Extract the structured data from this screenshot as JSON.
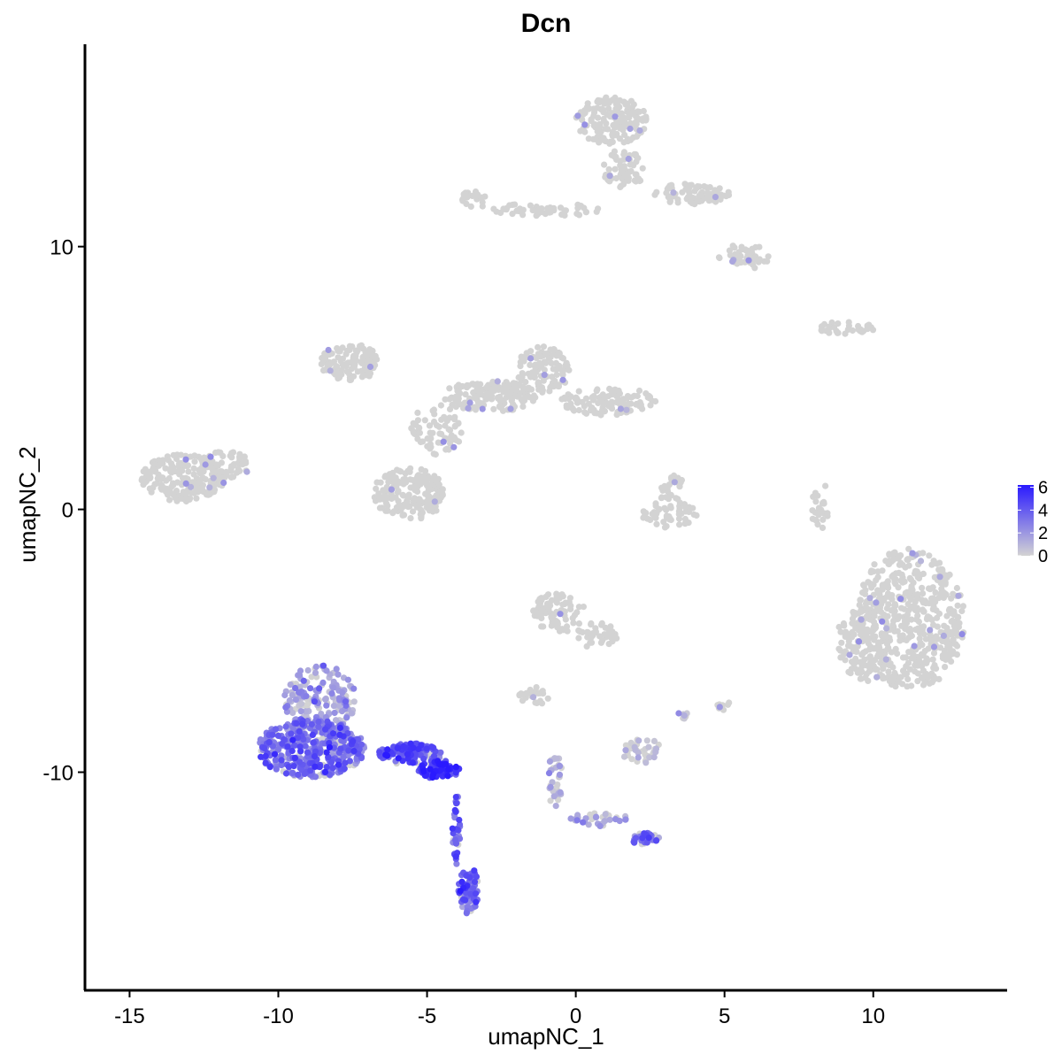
{
  "chart_data": {
    "type": "scatter",
    "title": "Dcn",
    "xlabel": "umapNC_1",
    "ylabel": "umapNC_2",
    "xlim": [
      -16.5,
      14.5
    ],
    "ylim": [
      -18.3,
      17.7
    ],
    "x_ticks": [
      -15,
      -10,
      -5,
      0,
      5,
      10
    ],
    "x_tick_labels": [
      "-15",
      "-10",
      "-5",
      "0",
      "5",
      "10"
    ],
    "y_ticks": [
      -10,
      0,
      10
    ],
    "y_tick_labels": [
      "-10",
      "0",
      "10"
    ],
    "grid": false,
    "point_color_low": "#d3d3d3",
    "point_color_high": "#2a1aff",
    "legend": {
      "position": "right",
      "title": "",
      "min": 0,
      "max": 6.2,
      "ticks": [
        0,
        2,
        4,
        6
      ],
      "tick_labels": [
        "0",
        "2",
        "4",
        "6"
      ]
    },
    "clusters": [
      {
        "cx": 11.2,
        "cy": -4.2,
        "rx": 1.9,
        "ry": 2.7,
        "n": 520,
        "expr": 0
      },
      {
        "cx": 9.7,
        "cy": -5.0,
        "rx": 0.9,
        "ry": 1.6,
        "n": 130,
        "expr": 0
      },
      {
        "cx": -13.2,
        "cy": 1.2,
        "rx": 1.4,
        "ry": 0.9,
        "n": 200,
        "expr": 0
      },
      {
        "cx": -11.8,
        "cy": 1.7,
        "rx": 0.9,
        "ry": 0.5,
        "n": 60,
        "expr": 0
      },
      {
        "cx": -7.6,
        "cy": 5.6,
        "rx": 1.0,
        "ry": 0.7,
        "n": 110,
        "expr": 0
      },
      {
        "cx": -5.6,
        "cy": 0.6,
        "rx": 1.2,
        "ry": 1.0,
        "n": 180,
        "expr": 0
      },
      {
        "cx": -2.9,
        "cy": 4.3,
        "rx": 1.6,
        "ry": 0.6,
        "n": 170,
        "expr": 0
      },
      {
        "cx": -1.1,
        "cy": 5.3,
        "rx": 0.9,
        "ry": 0.9,
        "n": 110,
        "expr": 0
      },
      {
        "cx": 1.1,
        "cy": 4.1,
        "rx": 1.6,
        "ry": 0.55,
        "n": 120,
        "expr": 0
      },
      {
        "cx": -4.7,
        "cy": 3.0,
        "rx": 0.9,
        "ry": 1.0,
        "n": 70,
        "expr": 0
      },
      {
        "cx": 1.2,
        "cy": 14.8,
        "rx": 1.2,
        "ry": 0.9,
        "n": 160,
        "expr": 0
      },
      {
        "cx": 1.6,
        "cy": 12.9,
        "rx": 0.7,
        "ry": 0.8,
        "n": 60,
        "expr": 0
      },
      {
        "cx": 3.9,
        "cy": 12.0,
        "rx": 1.3,
        "ry": 0.4,
        "n": 80,
        "expr": 0
      },
      {
        "cx": 5.6,
        "cy": 9.6,
        "rx": 0.9,
        "ry": 0.5,
        "n": 50,
        "expr": 0
      },
      {
        "cx": -1.0,
        "cy": 11.4,
        "rx": 1.8,
        "ry": 0.25,
        "n": 50,
        "expr": 0
      },
      {
        "cx": -3.4,
        "cy": 11.8,
        "rx": 0.6,
        "ry": 0.3,
        "n": 22,
        "expr": 0
      },
      {
        "cx": 9.1,
        "cy": 6.9,
        "rx": 1.0,
        "ry": 0.25,
        "n": 30,
        "expr": 0
      },
      {
        "cx": 3.2,
        "cy": -0.2,
        "rx": 1.0,
        "ry": 0.5,
        "n": 50,
        "expr": 0
      },
      {
        "cx": 3.2,
        "cy": 0.8,
        "rx": 0.5,
        "ry": 0.5,
        "n": 25,
        "expr": 0
      },
      {
        "cx": 8.2,
        "cy": 0.2,
        "rx": 0.3,
        "ry": 1.0,
        "n": 25,
        "expr": 0
      },
      {
        "cx": -0.6,
        "cy": -3.9,
        "rx": 0.9,
        "ry": 0.8,
        "n": 80,
        "expr": 0
      },
      {
        "cx": 0.7,
        "cy": -4.8,
        "rx": 0.7,
        "ry": 0.5,
        "n": 40,
        "expr": 0
      },
      {
        "cx": -1.4,
        "cy": -7.1,
        "rx": 0.5,
        "ry": 0.35,
        "n": 25,
        "expr": 0
      },
      {
        "cx": 2.3,
        "cy": -9.2,
        "rx": 0.8,
        "ry": 0.45,
        "n": 40,
        "expr": 0.3
      },
      {
        "cx": 5.0,
        "cy": -7.5,
        "rx": 0.25,
        "ry": 0.2,
        "n": 8,
        "expr": 0
      },
      {
        "cx": -8.6,
        "cy": -7.2,
        "rx": 1.2,
        "ry": 1.3,
        "n": 180,
        "expr": 1.5
      },
      {
        "cx": -8.9,
        "cy": -9.1,
        "rx": 1.8,
        "ry": 1.1,
        "n": 420,
        "expr": 3.2
      },
      {
        "cx": -5.6,
        "cy": -9.3,
        "rx": 1.1,
        "ry": 0.4,
        "n": 140,
        "expr": 4.0
      },
      {
        "cx": -4.6,
        "cy": -9.9,
        "rx": 0.7,
        "ry": 0.35,
        "n": 90,
        "expr": 5.3
      },
      {
        "cx": -3.6,
        "cy": -14.5,
        "rx": 0.35,
        "ry": 0.9,
        "n": 70,
        "expr": 3.6
      },
      {
        "cx": -4.0,
        "cy": -12.2,
        "rx": 0.15,
        "ry": 1.3,
        "n": 35,
        "expr": 4.0
      },
      {
        "cx": 2.3,
        "cy": -12.5,
        "rx": 0.5,
        "ry": 0.25,
        "n": 40,
        "expr": 3.0
      },
      {
        "cx": 0.8,
        "cy": -11.8,
        "rx": 1.0,
        "ry": 0.25,
        "n": 35,
        "expr": 1.0
      },
      {
        "cx": -0.7,
        "cy": -10.3,
        "rx": 0.25,
        "ry": 1.0,
        "n": 35,
        "expr": 0.4
      },
      {
        "cx": 3.6,
        "cy": -7.8,
        "rx": 0.15,
        "ry": 0.25,
        "n": 8,
        "expr": 0.8
      }
    ]
  }
}
